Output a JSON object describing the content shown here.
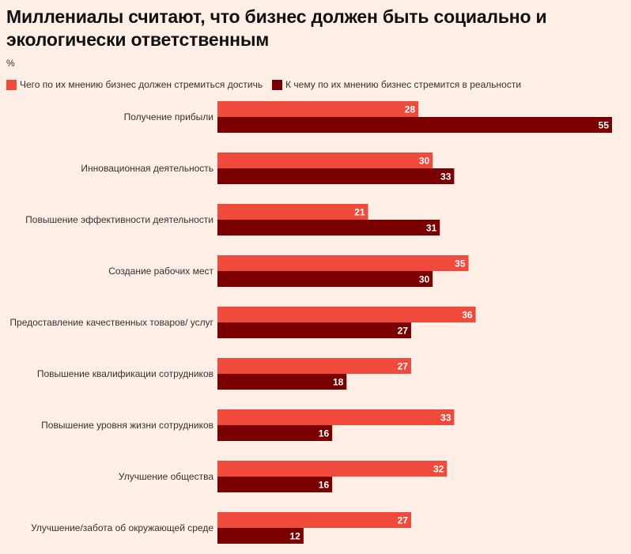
{
  "chart_data": {
    "type": "bar",
    "orientation": "horizontal",
    "title": "Миллениалы считают, что бизнес должен быть социально и экологически ответственным",
    "unit": "%",
    "categories": [
      "Получение прибыли",
      "Инновационная деятельность",
      "Повышение эффективности деятельности",
      "Создание рабочих мест",
      "Предоставление качественных товаров/ услуг",
      "Повышение квалификации сотрудников",
      "Повышение уровня жизни сотрудников",
      "Улучшение общества",
      "Улучшение/забота об окружающей среде"
    ],
    "series": [
      {
        "name": "Чего по их мнению бизнес должен стремиться достичь",
        "color": "#f04a3c",
        "values": [
          28,
          30,
          21,
          35,
          36,
          27,
          33,
          32,
          27
        ]
      },
      {
        "name": "К чему по их мнению бизнес стремится в реальности",
        "color": "#7a0000",
        "values": [
          55,
          33,
          31,
          30,
          27,
          18,
          16,
          16,
          12
        ]
      }
    ],
    "xlim": [
      0,
      55
    ],
    "legend": "top-left",
    "grid": false
  }
}
